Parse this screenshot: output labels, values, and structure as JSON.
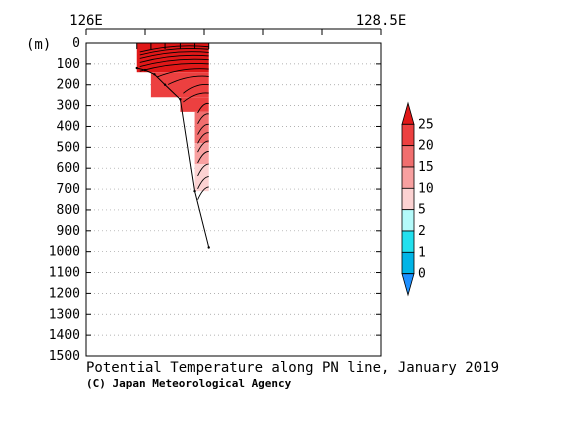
{
  "chart_data": {
    "type": "heatmap",
    "title": "Potential Temperature along PN line, January 2019",
    "credit": "(C) Japan Meteorological Agency",
    "ylabel": "(m)",
    "xlabel": "",
    "x_axis": {
      "range": [
        126.0,
        128.5
      ],
      "labels": [
        {
          "value": 126.0,
          "text": "126E"
        },
        {
          "value": 128.5,
          "text": "128.5E"
        }
      ],
      "ticks": [
        126.0,
        126.5,
        127.0,
        127.5,
        128.0,
        128.5
      ]
    },
    "y_axis": {
      "range": [
        0,
        1500
      ],
      "inverted": true,
      "ticks": [
        0,
        100,
        200,
        300,
        400,
        500,
        600,
        700,
        800,
        900,
        1000,
        1100,
        1200,
        1300,
        1400,
        1500
      ],
      "grid": true
    },
    "stations": [
      {
        "lon": 126.43,
        "max_depth": 120
      },
      {
        "lon": 126.55,
        "max_depth": 150
      },
      {
        "lon": 126.67,
        "max_depth": 200
      },
      {
        "lon": 126.8,
        "max_depth": 260
      },
      {
        "lon": 126.92,
        "max_depth": 700
      },
      {
        "lon": 127.04,
        "max_depth": 980
      }
    ],
    "bathymetry": [
      {
        "lon": 126.43,
        "depth": 120
      },
      {
        "lon": 126.5,
        "depth": 130
      },
      {
        "lon": 126.58,
        "depth": 150
      },
      {
        "lon": 126.67,
        "depth": 200
      },
      {
        "lon": 126.8,
        "depth": 270
      },
      {
        "lon": 126.92,
        "depth": 710
      },
      {
        "lon": 127.04,
        "depth": 980
      }
    ],
    "filled_regions": [
      {
        "x0": 126.43,
        "x1": 127.04,
        "d0": 0,
        "d1": 140,
        "class": ">25"
      },
      {
        "x0": 126.55,
        "x1": 127.04,
        "d0": 140,
        "d1": 260,
        "class": "20-25"
      },
      {
        "x0": 126.8,
        "x1": 127.04,
        "d0": 260,
        "d1": 330,
        "class": "20-25"
      },
      {
        "x0": 126.92,
        "x1": 127.04,
        "d0": 330,
        "d1": 480,
        "class": "15-20"
      },
      {
        "x0": 126.92,
        "x1": 127.04,
        "d0": 480,
        "d1": 580,
        "class": "10-15"
      },
      {
        "x0": 126.92,
        "x1": 127.04,
        "d0": 580,
        "d1": 710,
        "class": "5-10"
      }
    ],
    "colorbar": {
      "levels": [
        0,
        1,
        2,
        5,
        10,
        15,
        20,
        25
      ],
      "labels": [
        "0",
        "1",
        "2",
        "5",
        "10",
        "15",
        "20",
        "25"
      ],
      "classes": [
        {
          "name": "<0",
          "color": "#1e90ff"
        },
        {
          "name": "0-1",
          "color": "#00b4e6"
        },
        {
          "name": "1-2",
          "color": "#22e0ee"
        },
        {
          "name": "2-5",
          "color": "#b4fafa"
        },
        {
          "name": "5-10",
          "color": "#fcd2d2"
        },
        {
          "name": "10-15",
          "color": "#f8a0a0"
        },
        {
          "name": "15-20",
          "color": "#f06e6e"
        },
        {
          "name": "20-25",
          "color": "#ec4040"
        },
        {
          "name": ">25",
          "color": "#e01818"
        }
      ]
    }
  }
}
